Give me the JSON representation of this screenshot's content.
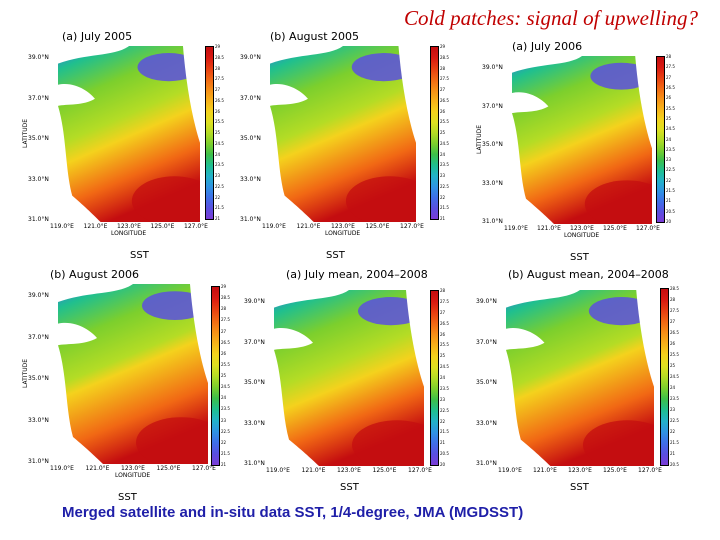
{
  "page": {
    "title": "Cold patches: signal of upwelling?",
    "caption": "Merged satellite and in-situ data SST, 1/4-degree, JMA (MGDSST)"
  },
  "axes": {
    "lat_ticks": [
      "39.0°N",
      "37.0°N",
      "35.0°N",
      "33.0°N",
      "31.0°N"
    ],
    "lon_ticks": [
      "119.0°E",
      "121.0°E",
      "123.0°E",
      "125.0°E",
      "127.0°E"
    ],
    "lat_name": "LATITUDE",
    "lon_name": "LONGITUDE"
  },
  "colors": {
    "sea_cold": "#7b3cd6",
    "sea_warm": "#e01010",
    "land": "#ffffff"
  },
  "panels": [
    {
      "title": "(a) July 2005",
      "sst_label": "SST",
      "show_lat_name": true,
      "show_lon_name": true,
      "colorbar": [
        "29",
        "28.5",
        "28",
        "27.5",
        "27",
        "26.5",
        "26",
        "25.5",
        "25",
        "24.5",
        "24",
        "23.5",
        "23",
        "22.5",
        "22",
        "21.5",
        "21"
      ]
    },
    {
      "title": "(b) August 2005",
      "sst_label": "SST",
      "show_lat_name": false,
      "show_lon_name": true,
      "colorbar": [
        "29",
        "28.5",
        "28",
        "27.5",
        "27",
        "26.5",
        "26",
        "25.5",
        "25",
        "24.5",
        "24",
        "23.5",
        "23",
        "22.5",
        "22",
        "21.5",
        "21"
      ]
    },
    {
      "title": "(a) July 2006",
      "sst_label": "SST",
      "show_lat_name": true,
      "show_lon_name": true,
      "colorbar": [
        "28",
        "27.5",
        "27",
        "26.5",
        "26",
        "25.5",
        "25",
        "24.5",
        "24",
        "23.5",
        "23",
        "22.5",
        "22",
        "21.5",
        "21",
        "20.5",
        "20"
      ]
    },
    {
      "title": "(b) August 2006",
      "sst_label": "SST",
      "show_lat_name": true,
      "show_lon_name": true,
      "colorbar": [
        "29",
        "28.5",
        "28",
        "27.5",
        "27",
        "26.5",
        "26",
        "25.5",
        "25",
        "24.5",
        "24",
        "23.5",
        "23",
        "22.5",
        "22",
        "21.5",
        "21"
      ]
    },
    {
      "title": "(a) July mean, 2004–2008",
      "sst_label": "SST",
      "show_lat_name": false,
      "show_lon_name": false,
      "colorbar": [
        "28",
        "27.5",
        "27",
        "26.5",
        "26",
        "25.5",
        "25",
        "24.5",
        "24",
        "23.5",
        "23",
        "22.5",
        "22",
        "21.5",
        "21",
        "20.5",
        "20"
      ]
    },
    {
      "title": "(b) August mean, 2004–2008",
      "sst_label": "SST",
      "show_lat_name": false,
      "show_lon_name": false,
      "colorbar": [
        "28.5",
        "28",
        "27.5",
        "27",
        "26.5",
        "26",
        "25.5",
        "25",
        "24.5",
        "24",
        "23.5",
        "23",
        "22.5",
        "22",
        "21.5",
        "21",
        "20.5"
      ]
    }
  ]
}
